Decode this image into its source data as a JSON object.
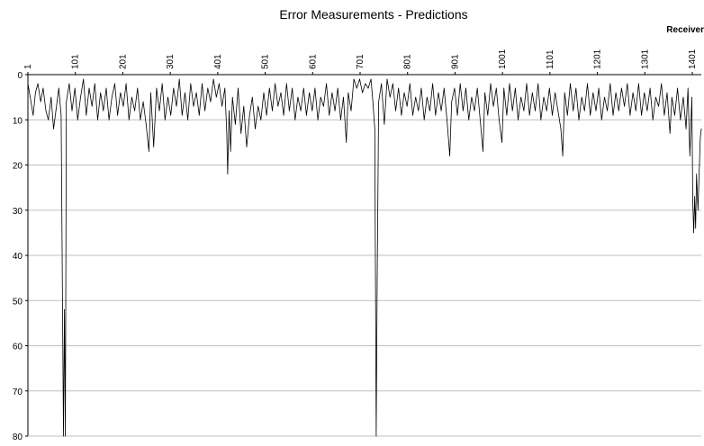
{
  "chart_data": {
    "type": "line",
    "title": "Error Measurements - Predictions",
    "xlabel": "Receiver",
    "ylabel": "",
    "ylim": [
      0,
      80
    ],
    "y_inverted": true,
    "y_ticks": [
      "0",
      "10",
      "20",
      "30",
      "40",
      "50",
      "60",
      "70",
      "80"
    ],
    "x_range": [
      1,
      1420
    ],
    "x_ticks": [
      "1",
      "101",
      "201",
      "301",
      "401",
      "501",
      "601",
      "701",
      "801",
      "901",
      "1001",
      "1101",
      "1201",
      "1301",
      "1401"
    ],
    "x_axis_position": "top",
    "grid": true,
    "legend": "none",
    "series_color": "#000000",
    "series": [
      {
        "values": [
          [
            1,
            2
          ],
          [
            6,
            5
          ],
          [
            12,
            9
          ],
          [
            17,
            4
          ],
          [
            22,
            2
          ],
          [
            28,
            6
          ],
          [
            33,
            3
          ],
          [
            39,
            8
          ],
          [
            44,
            10
          ],
          [
            50,
            5
          ],
          [
            55,
            12
          ],
          [
            60,
            8
          ],
          [
            66,
            3
          ],
          [
            71,
            9
          ],
          [
            76,
            80
          ],
          [
            78,
            52
          ],
          [
            80,
            80
          ],
          [
            82,
            6
          ],
          [
            88,
            2
          ],
          [
            94,
            8
          ],
          [
            100,
            3
          ],
          [
            106,
            10
          ],
          [
            112,
            5
          ],
          [
            118,
            1
          ],
          [
            124,
            9
          ],
          [
            130,
            3
          ],
          [
            136,
            7
          ],
          [
            142,
            2
          ],
          [
            148,
            10
          ],
          [
            154,
            4
          ],
          [
            160,
            8
          ],
          [
            166,
            3
          ],
          [
            172,
            10
          ],
          [
            178,
            5
          ],
          [
            184,
            2
          ],
          [
            190,
            9
          ],
          [
            196,
            4
          ],
          [
            202,
            7
          ],
          [
            208,
            2
          ],
          [
            214,
            10
          ],
          [
            220,
            5
          ],
          [
            226,
            8
          ],
          [
            232,
            3
          ],
          [
            238,
            10
          ],
          [
            244,
            6
          ],
          [
            250,
            11
          ],
          [
            256,
            17
          ],
          [
            260,
            4
          ],
          [
            266,
            16
          ],
          [
            272,
            3
          ],
          [
            278,
            8
          ],
          [
            284,
            2
          ],
          [
            290,
            10
          ],
          [
            296,
            5
          ],
          [
            302,
            9
          ],
          [
            308,
            3
          ],
          [
            314,
            7
          ],
          [
            320,
            1
          ],
          [
            326,
            9
          ],
          [
            332,
            4
          ],
          [
            338,
            10
          ],
          [
            344,
            2
          ],
          [
            350,
            7
          ],
          [
            356,
            4
          ],
          [
            362,
            9
          ],
          [
            368,
            2
          ],
          [
            374,
            8
          ],
          [
            380,
            3
          ],
          [
            386,
            6
          ],
          [
            392,
            1
          ],
          [
            398,
            5
          ],
          [
            404,
            2
          ],
          [
            410,
            7
          ],
          [
            416,
            3
          ],
          [
            420,
            13
          ],
          [
            422,
            22
          ],
          [
            425,
            8
          ],
          [
            428,
            17
          ],
          [
            432,
            5
          ],
          [
            438,
            11
          ],
          [
            444,
            3
          ],
          [
            450,
            13
          ],
          [
            456,
            7
          ],
          [
            462,
            16
          ],
          [
            468,
            9
          ],
          [
            474,
            5
          ],
          [
            480,
            12
          ],
          [
            486,
            7
          ],
          [
            492,
            10
          ],
          [
            498,
            4
          ],
          [
            504,
            9
          ],
          [
            510,
            3
          ],
          [
            516,
            8
          ],
          [
            522,
            2
          ],
          [
            528,
            7
          ],
          [
            534,
            4
          ],
          [
            540,
            9
          ],
          [
            546,
            2
          ],
          [
            552,
            8
          ],
          [
            558,
            3
          ],
          [
            564,
            10
          ],
          [
            570,
            5
          ],
          [
            576,
            8
          ],
          [
            582,
            3
          ],
          [
            588,
            9
          ],
          [
            594,
            4
          ],
          [
            600,
            8
          ],
          [
            606,
            3
          ],
          [
            612,
            10
          ],
          [
            618,
            5
          ],
          [
            624,
            7
          ],
          [
            630,
            2
          ],
          [
            636,
            9
          ],
          [
            642,
            4
          ],
          [
            648,
            8
          ],
          [
            654,
            3
          ],
          [
            660,
            10
          ],
          [
            666,
            5
          ],
          [
            672,
            15
          ],
          [
            676,
            4
          ],
          [
            682,
            8
          ],
          [
            688,
            1
          ],
          [
            694,
            3
          ],
          [
            700,
            1
          ],
          [
            706,
            4
          ],
          [
            712,
            2
          ],
          [
            718,
            3
          ],
          [
            724,
            1
          ],
          [
            728,
            6
          ],
          [
            732,
            12
          ],
          [
            735,
            80
          ],
          [
            737,
            45
          ],
          [
            740,
            6
          ],
          [
            746,
            2
          ],
          [
            752,
            11
          ],
          [
            758,
            1
          ],
          [
            764,
            5
          ],
          [
            770,
            2
          ],
          [
            776,
            8
          ],
          [
            782,
            3
          ],
          [
            788,
            9
          ],
          [
            794,
            4
          ],
          [
            800,
            7
          ],
          [
            806,
            2
          ],
          [
            812,
            9
          ],
          [
            818,
            5
          ],
          [
            824,
            8
          ],
          [
            830,
            3
          ],
          [
            836,
            10
          ],
          [
            842,
            5
          ],
          [
            848,
            8
          ],
          [
            854,
            2
          ],
          [
            860,
            9
          ],
          [
            866,
            4
          ],
          [
            872,
            8
          ],
          [
            878,
            3
          ],
          [
            884,
            10
          ],
          [
            890,
            18
          ],
          [
            894,
            6
          ],
          [
            900,
            3
          ],
          [
            906,
            9
          ],
          [
            912,
            2
          ],
          [
            918,
            8
          ],
          [
            924,
            3
          ],
          [
            930,
            10
          ],
          [
            936,
            5
          ],
          [
            942,
            8
          ],
          [
            948,
            3
          ],
          [
            954,
            10
          ],
          [
            960,
            17
          ],
          [
            964,
            4
          ],
          [
            970,
            9
          ],
          [
            976,
            2
          ],
          [
            982,
            7
          ],
          [
            988,
            3
          ],
          [
            994,
            10
          ],
          [
            1000,
            15
          ],
          [
            1004,
            3
          ],
          [
            1010,
            9
          ],
          [
            1016,
            2
          ],
          [
            1022,
            8
          ],
          [
            1028,
            3
          ],
          [
            1034,
            10
          ],
          [
            1040,
            5
          ],
          [
            1046,
            8
          ],
          [
            1052,
            2
          ],
          [
            1058,
            9
          ],
          [
            1064,
            4
          ],
          [
            1070,
            8
          ],
          [
            1076,
            2
          ],
          [
            1082,
            10
          ],
          [
            1088,
            5
          ],
          [
            1094,
            8
          ],
          [
            1100,
            3
          ],
          [
            1106,
            9
          ],
          [
            1112,
            4
          ],
          [
            1118,
            8
          ],
          [
            1124,
            12
          ],
          [
            1128,
            18
          ],
          [
            1132,
            4
          ],
          [
            1138,
            9
          ],
          [
            1144,
            2
          ],
          [
            1150,
            8
          ],
          [
            1156,
            3
          ],
          [
            1162,
            10
          ],
          [
            1168,
            5
          ],
          [
            1174,
            8
          ],
          [
            1180,
            2
          ],
          [
            1186,
            9
          ],
          [
            1192,
            4
          ],
          [
            1198,
            8
          ],
          [
            1204,
            3
          ],
          [
            1210,
            10
          ],
          [
            1216,
            5
          ],
          [
            1222,
            8
          ],
          [
            1228,
            2
          ],
          [
            1234,
            9
          ],
          [
            1240,
            4
          ],
          [
            1246,
            8
          ],
          [
            1252,
            3
          ],
          [
            1258,
            7
          ],
          [
            1264,
            2
          ],
          [
            1270,
            9
          ],
          [
            1276,
            4
          ],
          [
            1282,
            8
          ],
          [
            1288,
            2
          ],
          [
            1294,
            9
          ],
          [
            1300,
            4
          ],
          [
            1306,
            8
          ],
          [
            1312,
            3
          ],
          [
            1318,
            10
          ],
          [
            1324,
            5
          ],
          [
            1330,
            7
          ],
          [
            1336,
            2
          ],
          [
            1342,
            9
          ],
          [
            1348,
            4
          ],
          [
            1354,
            13
          ],
          [
            1358,
            5
          ],
          [
            1364,
            9
          ],
          [
            1370,
            3
          ],
          [
            1376,
            10
          ],
          [
            1382,
            5
          ],
          [
            1388,
            12
          ],
          [
            1392,
            3
          ],
          [
            1396,
            18
          ],
          [
            1400,
            5
          ],
          [
            1402,
            28
          ],
          [
            1404,
            35
          ],
          [
            1406,
            27
          ],
          [
            1408,
            34
          ],
          [
            1410,
            22
          ],
          [
            1413,
            30
          ],
          [
            1416,
            20
          ],
          [
            1418,
            14
          ],
          [
            1420,
            12
          ]
        ]
      }
    ]
  }
}
